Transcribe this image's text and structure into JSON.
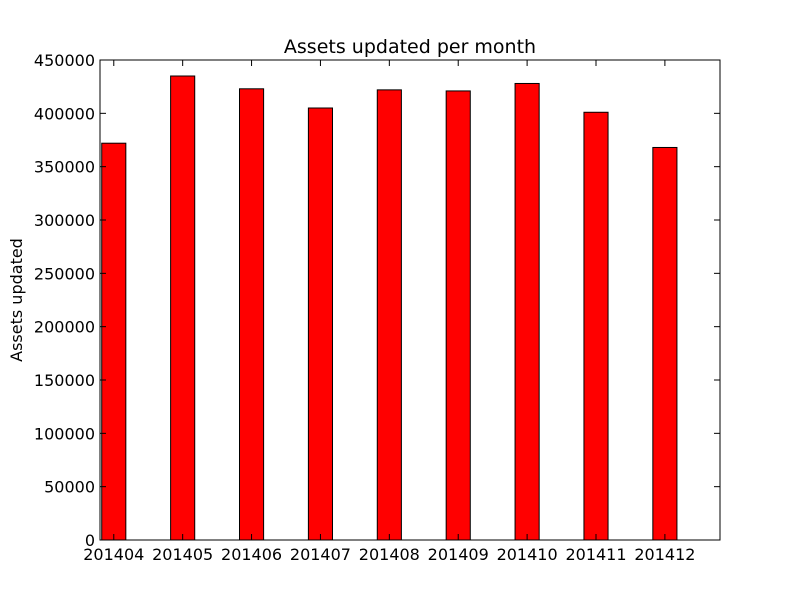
{
  "chart_data": {
    "type": "bar",
    "title": "Assets updated per month",
    "xlabel": "",
    "ylabel": "Assets updated",
    "categories": [
      "201404",
      "201405",
      "201406",
      "201407",
      "201408",
      "201409",
      "201410",
      "201411",
      "201412"
    ],
    "values": [
      372000,
      435000,
      423000,
      405000,
      422000,
      421000,
      428000,
      401000,
      368000
    ],
    "ylim": [
      0,
      450000
    ],
    "yticks": [
      0,
      50000,
      100000,
      150000,
      200000,
      250000,
      300000,
      350000,
      400000,
      450000
    ],
    "ytick_labels": [
      "0",
      "50000",
      "100000",
      "150000",
      "200000",
      "250000",
      "300000",
      "350000",
      "400000",
      "450000"
    ],
    "bar_color": "#ff0000",
    "edge_color": "#000000",
    "grid": false,
    "legend": "none"
  }
}
